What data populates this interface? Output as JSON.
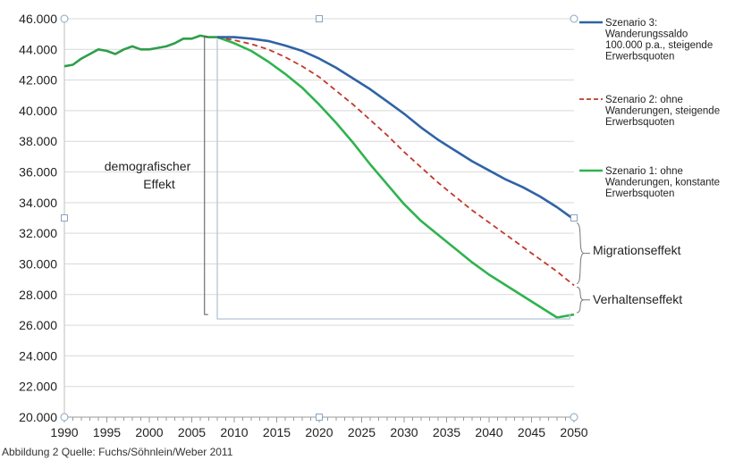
{
  "caption": "Abbildung 2 Quelle: Fuchs/Söhnlein/Weber 2011",
  "chart_data": {
    "type": "line",
    "title": "",
    "xlabel": "",
    "ylabel": "",
    "xlim": [
      1990,
      2050
    ],
    "ylim": [
      20000,
      46000
    ],
    "grid": true,
    "legend_position": "right",
    "x_ticks": [
      1990,
      1995,
      2000,
      2005,
      2010,
      2015,
      2020,
      2025,
      2030,
      2035,
      2040,
      2045,
      2050
    ],
    "x_tick_labels": [
      "1990",
      "1995",
      "2000",
      "2005",
      "2010",
      "2015",
      "2020",
      "2025",
      "2030",
      "2035",
      "2040",
      "2045",
      "2050"
    ],
    "y_ticks": [
      20000,
      22000,
      24000,
      26000,
      28000,
      30000,
      32000,
      34000,
      36000,
      38000,
      40000,
      42000,
      44000,
      46000
    ],
    "y_tick_labels": [
      "20.000",
      "22.000",
      "24.000",
      "26.000",
      "28.000",
      "30.000",
      "32.000",
      "34.000",
      "36.000",
      "38.000",
      "40.000",
      "42.000",
      "44.000",
      "46.000"
    ],
    "historical": {
      "color": "#2e9e4a",
      "x": [
        1990,
        1991,
        1992,
        1993,
        1994,
        1995,
        1996,
        1997,
        1998,
        1999,
        2000,
        2001,
        2002,
        2003,
        2004,
        2005,
        2006,
        2007,
        2008
      ],
      "y": [
        42900,
        43000,
        43400,
        43700,
        44000,
        43900,
        43700,
        44000,
        44200,
        44000,
        44000,
        44100,
        44200,
        44400,
        44700,
        44700,
        44900,
        44800,
        44800
      ]
    },
    "series": [
      {
        "name": "Szenario 3: Wanderungssaldo 100.000 p.a., steigende Erwerbsquoten",
        "legend_lines": [
          "Szenario 3:",
          "Wanderungssaldo",
          "100.000 p.a., steigende",
          "Erwerbsquoten"
        ],
        "color": "#2f63a5",
        "dash": "solid",
        "x": [
          2008,
          2010,
          2012,
          2014,
          2016,
          2018,
          2020,
          2022,
          2024,
          2026,
          2028,
          2030,
          2032,
          2034,
          2036,
          2038,
          2040,
          2042,
          2044,
          2046,
          2048,
          2050
        ],
        "y": [
          44800,
          44800,
          44700,
          44550,
          44250,
          43900,
          43400,
          42800,
          42100,
          41400,
          40600,
          39800,
          38900,
          38100,
          37400,
          36700,
          36100,
          35500,
          35000,
          34400,
          33700,
          32900
        ]
      },
      {
        "name": "Szenario 2: ohne Wanderungen, steigende Erwerbsquoten",
        "legend_lines": [
          "Szenario 2: ohne",
          "Wanderungen, steigende",
          "Erwerbsquoten"
        ],
        "color": "#c0392b",
        "dash": "dashed",
        "x": [
          2008,
          2010,
          2012,
          2014,
          2016,
          2018,
          2020,
          2022,
          2024,
          2026,
          2028,
          2030,
          2032,
          2034,
          2036,
          2038,
          2040,
          2042,
          2044,
          2046,
          2048,
          2050
        ],
        "y": [
          44800,
          44600,
          44350,
          44000,
          43500,
          42900,
          42200,
          41300,
          40400,
          39400,
          38400,
          37300,
          36300,
          35300,
          34400,
          33500,
          32700,
          31900,
          31100,
          30300,
          29500,
          28600
        ]
      },
      {
        "name": "Szenario 1: ohne Wanderungen, konstante Erwerbsquoten",
        "legend_lines": [
          "Szenario 1: ohne",
          "Wanderungen, konstante",
          "Erwerbsquoten"
        ],
        "color": "#2fb34e",
        "dash": "solid",
        "x": [
          2008,
          2010,
          2012,
          2014,
          2016,
          2018,
          2020,
          2022,
          2024,
          2026,
          2028,
          2030,
          2032,
          2034,
          2036,
          2038,
          2040,
          2042,
          2044,
          2046,
          2048,
          2050
        ],
        "y": [
          44800,
          44400,
          43900,
          43200,
          42400,
          41500,
          40400,
          39200,
          37900,
          36500,
          35200,
          33900,
          32800,
          31900,
          31000,
          30100,
          29300,
          28600,
          27900,
          27200,
          26500,
          26700
        ]
      }
    ],
    "annotations": [
      {
        "label_lines": [
          "demografischer",
          "Effekt"
        ],
        "from_y": 44800,
        "to_y": 26700
      },
      {
        "label_lines": [
          "Migrationseffekt"
        ],
        "from_y": 32900,
        "to_y": 28600
      },
      {
        "label_lines": [
          "Verhaltenseffekt"
        ],
        "from_y": 28600,
        "to_y": 26700
      }
    ]
  }
}
